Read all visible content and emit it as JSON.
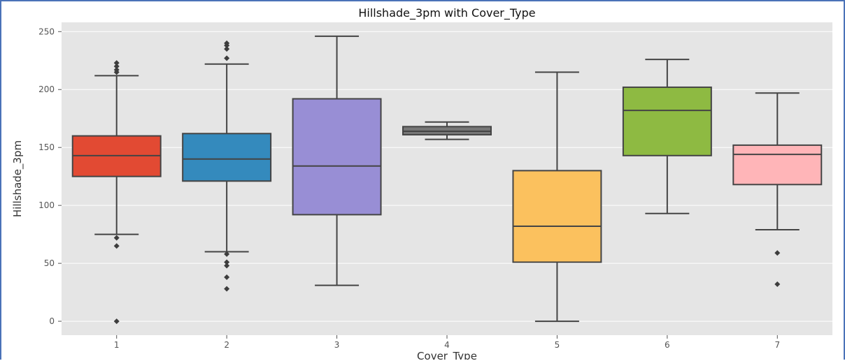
{
  "chart_data": {
    "type": "box",
    "title": "Hillshade_3pm with Cover_Type",
    "xlabel": "Cover_Type",
    "ylabel": "Hillshade_3pm",
    "categories": [
      "1",
      "2",
      "3",
      "4",
      "5",
      "6",
      "7"
    ],
    "ylim": [
      -12,
      258
    ],
    "yticks": [
      0,
      50,
      100,
      150,
      200,
      250
    ],
    "grid": true,
    "legend": "none",
    "boxes": [
      {
        "category": "1",
        "whisker_low": 75,
        "q1": 125,
        "median": 143,
        "q3": 160,
        "whisker_high": 212,
        "outliers": [
          223,
          220,
          217,
          215,
          72,
          65,
          0
        ],
        "color": "#e24a33"
      },
      {
        "category": "2",
        "whisker_low": 60,
        "q1": 121,
        "median": 140,
        "q3": 162,
        "whisker_high": 222,
        "outliers": [
          240,
          238,
          235,
          227,
          58,
          51,
          48,
          38,
          28
        ],
        "color": "#348abd"
      },
      {
        "category": "3",
        "whisker_low": 31,
        "q1": 92,
        "median": 134,
        "q3": 192,
        "whisker_high": 246,
        "outliers": [],
        "color": "#988ed5"
      },
      {
        "category": "4",
        "whisker_low": 157,
        "q1": 161,
        "median": 164,
        "q3": 168,
        "whisker_high": 172,
        "outliers": [],
        "color": "#777777"
      },
      {
        "category": "5",
        "whisker_low": 0,
        "q1": 51,
        "median": 82,
        "q3": 130,
        "whisker_high": 215,
        "outliers": [],
        "color": "#fbc15e"
      },
      {
        "category": "6",
        "whisker_low": 93,
        "q1": 143,
        "median": 182,
        "q3": 202,
        "whisker_high": 226,
        "outliers": [],
        "color": "#8eba42"
      },
      {
        "category": "7",
        "whisker_low": 79,
        "q1": 118,
        "median": 144,
        "q3": 152,
        "whisker_high": 197,
        "outliers": [
          59,
          32
        ],
        "color": "#ffb5b8"
      }
    ],
    "colors": {
      "plot_background": "#e5e5e5",
      "gridline": "#ffffff",
      "box_edge": "#444444",
      "frame_border": "#4a72b8"
    }
  }
}
